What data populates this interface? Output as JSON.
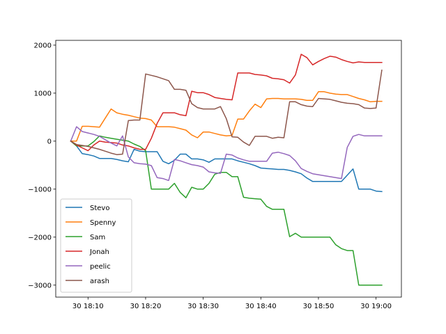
{
  "chart_data": {
    "type": "line",
    "title": "",
    "xlabel": "",
    "ylabel": "",
    "xlim": [
      "18:04.4",
      "19:04.4"
    ],
    "ylim": [
      -3250,
      2100
    ],
    "x_ticks": [
      {
        "t": "18:10",
        "label": "30 18:10"
      },
      {
        "t": "18:20",
        "label": "30 18:20"
      },
      {
        "t": "18:30",
        "label": "30 18:30"
      },
      {
        "t": "18:40",
        "label": "30 18:40"
      },
      {
        "t": "18:50",
        "label": "30 18:50"
      },
      {
        "t": "19:00",
        "label": "30 19:00"
      }
    ],
    "y_ticks": [
      {
        "v": 2000,
        "label": "2000"
      },
      {
        "v": 1000,
        "label": "1000"
      },
      {
        "v": 0,
        "label": "0"
      },
      {
        "v": -1000,
        "label": "−1000"
      },
      {
        "v": -2000,
        "label": "−2000"
      },
      {
        "v": -3000,
        "label": "−3000"
      }
    ],
    "x": [
      "18:07",
      "18:08",
      "18:09",
      "18:10",
      "18:11",
      "18:12",
      "18:13",
      "18:14",
      "18:15",
      "18:16",
      "18:17",
      "18:18",
      "18:19",
      "18:20",
      "18:21",
      "18:22",
      "18:23",
      "18:24",
      "18:25",
      "18:26",
      "18:27",
      "18:28",
      "18:29",
      "18:30",
      "18:31",
      "18:32",
      "18:33",
      "18:34",
      "18:35",
      "18:36",
      "18:37",
      "18:38",
      "18:39",
      "18:40",
      "18:41",
      "18:42",
      "18:43",
      "18:44",
      "18:45",
      "18:46",
      "18:47",
      "18:48",
      "18:49",
      "18:50",
      "18:51",
      "18:52",
      "18:53",
      "18:54",
      "18:55",
      "18:56",
      "18:57",
      "18:58",
      "18:59",
      "19:00",
      "19:01"
    ],
    "series": [
      {
        "name": "Stevo",
        "color": "#1f77b4",
        "values": [
          0,
          -100,
          -260,
          -280,
          -310,
          -360,
          -360,
          -360,
          -380,
          -410,
          -430,
          -170,
          -210,
          -220,
          -220,
          -220,
          -420,
          -470,
          -400,
          -270,
          -270,
          -370,
          -370,
          -390,
          -440,
          -370,
          -370,
          -370,
          -370,
          -410,
          -440,
          -470,
          -510,
          -560,
          -570,
          -580,
          -590,
          -590,
          -610,
          -640,
          -680,
          -770,
          -840,
          -840,
          -840,
          -840,
          -840,
          -840,
          -710,
          -580,
          -1000,
          -1000,
          -1000,
          -1040,
          -1050
        ]
      },
      {
        "name": "Spenny",
        "color": "#ff7f0e",
        "values": [
          0,
          0,
          310,
          310,
          300,
          290,
          480,
          670,
          590,
          560,
          540,
          510,
          480,
          470,
          440,
          300,
          300,
          300,
          290,
          260,
          230,
          130,
          70,
          190,
          190,
          160,
          130,
          110,
          120,
          460,
          460,
          630,
          770,
          700,
          880,
          890,
          890,
          880,
          880,
          880,
          870,
          850,
          850,
          1030,
          1030,
          1000,
          980,
          970,
          970,
          930,
          890,
          860,
          820,
          830,
          830
        ]
      },
      {
        "name": "Sam",
        "color": "#2ca02c",
        "values": [
          0,
          -100,
          -100,
          -100,
          -10,
          110,
          80,
          60,
          40,
          20,
          0,
          -60,
          -110,
          -200,
          -1000,
          -1000,
          -1000,
          -1000,
          -880,
          -1070,
          -1180,
          -960,
          -1000,
          -1000,
          -880,
          -690,
          -650,
          -650,
          -740,
          -740,
          -1170,
          -1190,
          -1200,
          -1210,
          -1360,
          -1420,
          -1420,
          -1420,
          -1990,
          -1920,
          -2000,
          -2000,
          -2000,
          -2000,
          -2000,
          -2000,
          -2160,
          -2240,
          -2280,
          -2280,
          -3000,
          -3000,
          -3000,
          -3000,
          -3000
        ]
      },
      {
        "name": "Jonah",
        "color": "#d62728",
        "values": [
          0,
          -80,
          -140,
          -200,
          -80,
          0,
          -20,
          -30,
          -40,
          -80,
          -100,
          -140,
          -170,
          -170,
          60,
          370,
          590,
          590,
          590,
          550,
          530,
          1040,
          1010,
          1010,
          970,
          910,
          890,
          870,
          860,
          1420,
          1420,
          1420,
          1390,
          1380,
          1360,
          1310,
          1300,
          1280,
          1210,
          1380,
          1810,
          1740,
          1590,
          1660,
          1720,
          1770,
          1750,
          1700,
          1660,
          1630,
          1650,
          1640,
          1640,
          1640,
          1640
        ]
      },
      {
        "name": "peelic",
        "color": "#9467bd",
        "values": [
          0,
          300,
          200,
          170,
          140,
          100,
          30,
          -40,
          -100,
          110,
          -330,
          -450,
          -470,
          -480,
          -510,
          -760,
          -780,
          -820,
          -380,
          -410,
          -450,
          -490,
          -510,
          -540,
          -640,
          -660,
          -670,
          -270,
          -290,
          -350,
          -390,
          -420,
          -420,
          -420,
          -420,
          -250,
          -230,
          -260,
          -300,
          -410,
          -570,
          -630,
          -680,
          -700,
          -720,
          -740,
          -760,
          -780,
          -130,
          100,
          140,
          110,
          110,
          110,
          110
        ]
      },
      {
        "name": "arash",
        "color": "#8c564b",
        "values": [
          0,
          -70,
          -90,
          -110,
          -140,
          -170,
          -210,
          -250,
          -280,
          -270,
          430,
          440,
          440,
          1400,
          1370,
          1340,
          1300,
          1260,
          1080,
          1080,
          1060,
          780,
          700,
          670,
          670,
          670,
          720,
          470,
          90,
          80,
          -20,
          -90,
          100,
          100,
          100,
          60,
          80,
          70,
          820,
          820,
          760,
          730,
          720,
          890,
          880,
          870,
          840,
          810,
          790,
          780,
          760,
          690,
          680,
          690,
          1480
        ]
      }
    ],
    "legend": {
      "placement": "lower-left",
      "entries": [
        "Stevo",
        "Spenny",
        "Sam",
        "Jonah",
        "peelic",
        "arash"
      ]
    },
    "grid": false
  }
}
